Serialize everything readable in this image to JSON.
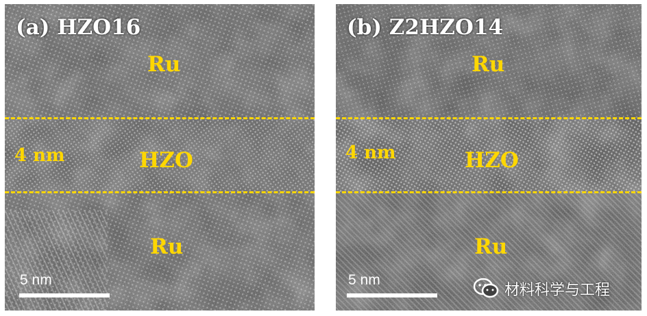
{
  "panels": [
    {
      "title": "(a) HZO16",
      "labels": {
        "top_layer": "Ru",
        "thickness": "4 nm",
        "middle_layer": "HZO",
        "bottom_layer": "Ru"
      },
      "scale_bar": "5 nm"
    },
    {
      "title": "(b) Z2HZO14",
      "labels": {
        "top_layer": "Ru",
        "thickness": "4 nm",
        "middle_layer": "HZO",
        "bottom_layer": "Ru"
      },
      "scale_bar": "5 nm"
    }
  ],
  "watermark": {
    "text": "材料科学与工程",
    "icon": "wechat-icon"
  },
  "colors": {
    "label": "#ffd700",
    "dashed_line": "#ffd700",
    "scale_bar": "#ffffff"
  }
}
